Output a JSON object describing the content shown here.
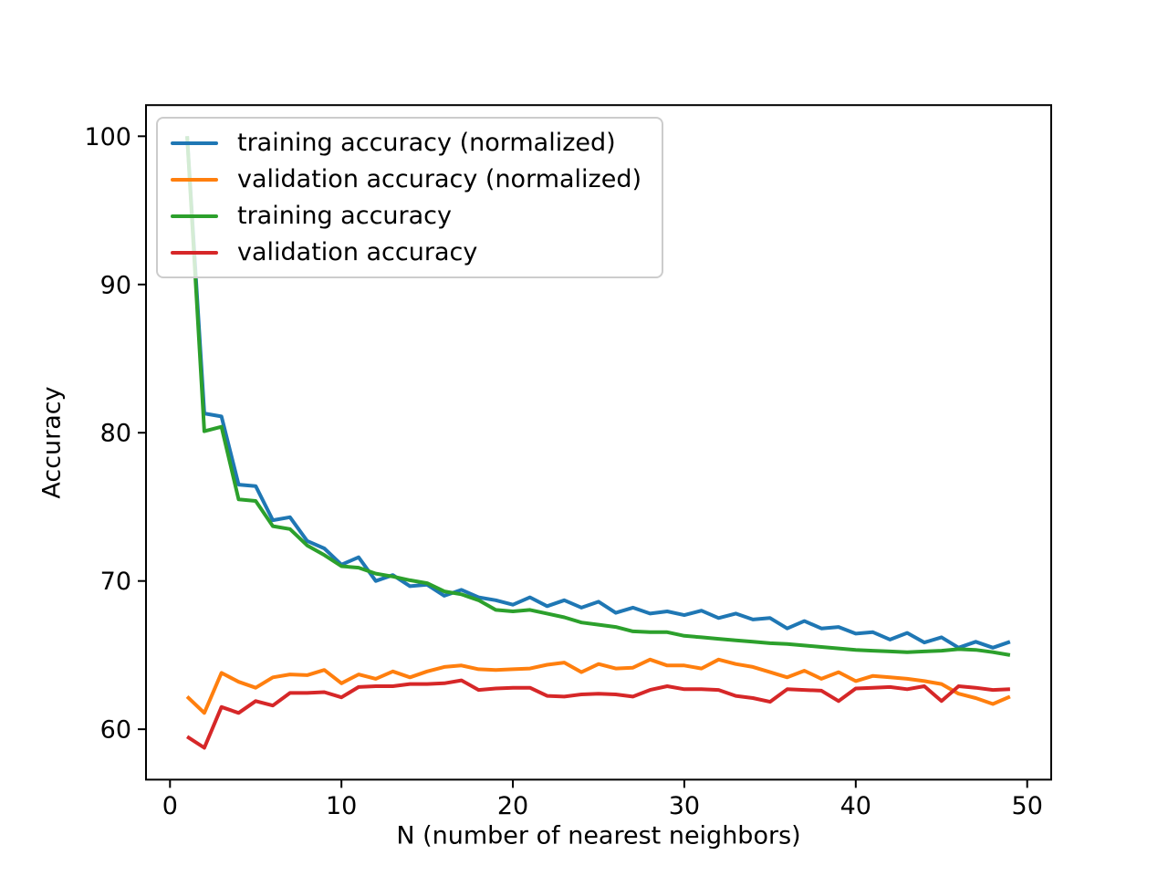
{
  "figure": {
    "background": "#ffffff"
  },
  "chart_data": {
    "type": "line",
    "title": "",
    "xlabel": "N (number of nearest neighbors)",
    "ylabel": "Accuracy",
    "grid": false,
    "legend_position": "upper left",
    "xlim": [
      -1.4,
      51.4
    ],
    "ylim": [
      56.6,
      102.1
    ],
    "x_ticks": [
      0,
      10,
      20,
      30,
      40,
      50
    ],
    "y_ticks": [
      60,
      70,
      80,
      90,
      100
    ],
    "axis_color": "#000000",
    "x": [
      1,
      2,
      3,
      4,
      5,
      6,
      7,
      8,
      9,
      10,
      11,
      12,
      13,
      14,
      15,
      16,
      17,
      18,
      19,
      20,
      21,
      22,
      23,
      24,
      25,
      26,
      27,
      28,
      29,
      30,
      31,
      32,
      33,
      34,
      35,
      36,
      37,
      38,
      39,
      40,
      41,
      42,
      43,
      44,
      45,
      46,
      47,
      48,
      49
    ],
    "series": [
      {
        "name": "training accuracy (normalized)",
        "color": "#1f77b4",
        "values": [
          100,
          81.3,
          81.1,
          76.5,
          76.4,
          74.1,
          74.3,
          72.7,
          72.2,
          71.1,
          71.6,
          70.0,
          70.4,
          69.65,
          69.75,
          69.0,
          69.4,
          68.9,
          68.7,
          68.4,
          68.9,
          68.3,
          68.7,
          68.2,
          68.6,
          67.85,
          68.2,
          67.8,
          67.95,
          67.7,
          68.0,
          67.5,
          67.8,
          67.4,
          67.5,
          66.8,
          67.3,
          66.8,
          66.9,
          66.45,
          66.55,
          66.05,
          66.5,
          65.85,
          66.2,
          65.5,
          65.9,
          65.5,
          65.9
        ]
      },
      {
        "name": "validation accuracy (normalized)",
        "color": "#ff7f0e",
        "values": [
          62.2,
          61.1,
          63.8,
          63.2,
          62.8,
          63.5,
          63.7,
          63.65,
          64.0,
          63.1,
          63.7,
          63.4,
          63.9,
          63.5,
          63.9,
          64.2,
          64.3,
          64.05,
          64.0,
          64.05,
          64.1,
          64.35,
          64.5,
          63.85,
          64.4,
          64.1,
          64.15,
          64.7,
          64.3,
          64.3,
          64.1,
          64.7,
          64.4,
          64.2,
          63.85,
          63.5,
          63.95,
          63.4,
          63.85,
          63.25,
          63.6,
          63.5,
          63.4,
          63.25,
          63.05,
          62.4,
          62.1,
          61.7,
          62.2
        ]
      },
      {
        "name": "training accuracy",
        "color": "#2ca02c",
        "values": [
          100,
          80.1,
          80.4,
          75.5,
          75.4,
          73.7,
          73.5,
          72.4,
          71.75,
          71.0,
          70.9,
          70.5,
          70.3,
          70.05,
          69.85,
          69.3,
          69.1,
          68.7,
          68.05,
          67.95,
          68.05,
          67.8,
          67.55,
          67.2,
          67.05,
          66.9,
          66.6,
          66.55,
          66.55,
          66.3,
          66.2,
          66.1,
          66.0,
          65.9,
          65.8,
          65.75,
          65.65,
          65.55,
          65.45,
          65.35,
          65.3,
          65.25,
          65.2,
          65.25,
          65.3,
          65.4,
          65.35,
          65.2,
          65.0
        ]
      },
      {
        "name": "validation accuracy",
        "color": "#d62728",
        "values": [
          59.5,
          58.75,
          61.5,
          61.1,
          61.9,
          61.6,
          62.45,
          62.45,
          62.5,
          62.15,
          62.85,
          62.9,
          62.9,
          63.05,
          63.05,
          63.1,
          63.3,
          62.65,
          62.75,
          62.8,
          62.8,
          62.25,
          62.2,
          62.35,
          62.4,
          62.35,
          62.2,
          62.65,
          62.9,
          62.7,
          62.7,
          62.65,
          62.25,
          62.1,
          61.85,
          62.7,
          62.65,
          62.6,
          61.9,
          62.75,
          62.8,
          62.85,
          62.7,
          62.9,
          61.9,
          62.9,
          62.8,
          62.65,
          62.7
        ]
      }
    ]
  }
}
